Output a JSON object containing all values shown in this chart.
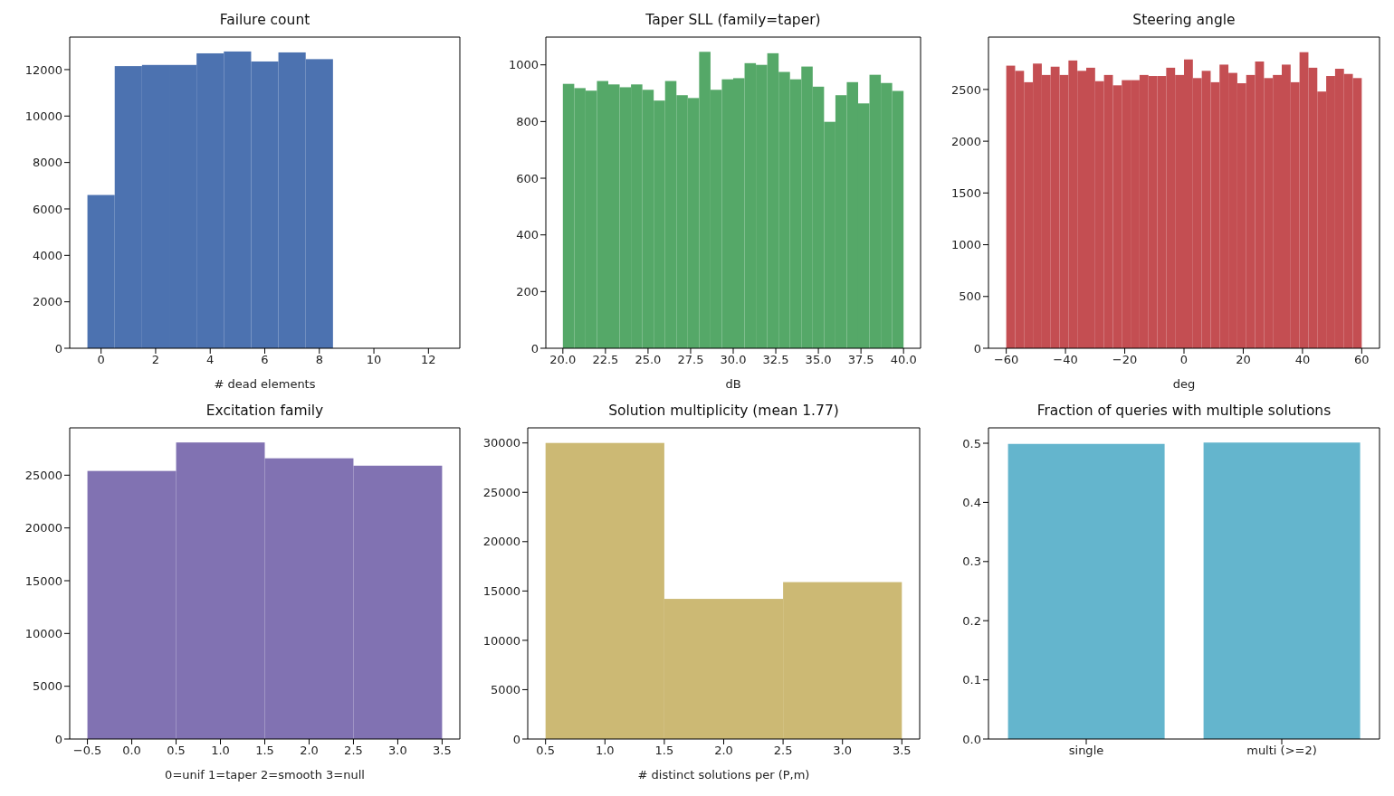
{
  "chart_data": [
    {
      "type": "histogram",
      "title": "Failure count",
      "xlabel": "# dead elements",
      "color": "#4c72b0",
      "bins": [
        -0.5,
        0.5,
        1.5,
        2.5,
        3.5,
        4.5,
        5.5,
        6.5,
        7.5,
        8.5,
        9.5,
        10.5,
        11.5,
        12.5
      ],
      "values": [
        6600,
        12150,
        12200,
        12200,
        12700,
        12780,
        12350,
        12740,
        12450,
        0,
        0,
        0,
        0
      ],
      "xlim": [
        -1.15,
        13.15
      ],
      "xticks": [
        0,
        2,
        4,
        6,
        8,
        10,
        12
      ],
      "ylim": [
        0,
        13400
      ],
      "yticks": [
        0,
        2000,
        4000,
        6000,
        8000,
        10000,
        12000
      ]
    },
    {
      "type": "histogram",
      "title": "Taper SLL (family=taper)",
      "xlabel": "dB",
      "color": "#55a868",
      "bins": [
        20,
        20.667,
        21.333,
        22,
        22.667,
        23.333,
        24,
        24.667,
        25.333,
        26,
        26.667,
        27.333,
        28,
        28.667,
        29.333,
        30,
        30.667,
        31.333,
        32,
        32.667,
        33.333,
        34,
        34.667,
        35.333,
        36,
        36.667,
        37.333,
        38,
        38.667,
        39.333,
        40
      ],
      "values": [
        933,
        918,
        909,
        943,
        931,
        921,
        931,
        912,
        874,
        943,
        893,
        883,
        1046,
        912,
        949,
        953,
        1006,
        1000,
        1041,
        975,
        949,
        994,
        923,
        799,
        893,
        939,
        864,
        965,
        936,
        908
      ],
      "xlim": [
        19,
        41
      ],
      "xticks": [
        {
          "value": 20,
          "label": "20.0"
        },
        22.5,
        {
          "value": 25,
          "label": "25.0"
        },
        27.5,
        {
          "value": 30,
          "label": "30.0"
        },
        32.5,
        {
          "value": 35,
          "label": "35.0"
        },
        37.5,
        {
          "value": 40,
          "label": "40.0"
        }
      ],
      "ylim": [
        0,
        1098
      ],
      "yticks": [
        0,
        200,
        400,
        600,
        800,
        1000
      ]
    },
    {
      "type": "histogram",
      "title": "Steering angle",
      "xlabel": "deg",
      "color": "#c44e52",
      "bins": [
        -60,
        -57,
        -54,
        -51,
        -48,
        -45,
        -42,
        -39,
        -36,
        -33,
        -30,
        -27,
        -24,
        -21,
        -18,
        -15,
        -12,
        -9,
        -6,
        -3,
        0,
        3,
        6,
        9,
        12,
        15,
        18,
        21,
        24,
        27,
        30,
        33,
        36,
        39,
        42,
        45,
        48,
        51,
        54,
        57,
        60
      ],
      "values": [
        2730,
        2680,
        2570,
        2750,
        2640,
        2720,
        2640,
        2780,
        2680,
        2710,
        2580,
        2640,
        2540,
        2590,
        2590,
        2640,
        2630,
        2630,
        2710,
        2640,
        2790,
        2610,
        2680,
        2570,
        2740,
        2660,
        2560,
        2640,
        2770,
        2610,
        2640,
        2740,
        2570,
        2860,
        2710,
        2480,
        2630,
        2700,
        2650,
        2610
      ],
      "xlim": [
        -66,
        66
      ],
      "xticks": [
        {
          "value": -60,
          "label": "−60"
        },
        {
          "value": -40,
          "label": "−40"
        },
        {
          "value": -20,
          "label": "−20"
        },
        0,
        20,
        40,
        60
      ],
      "ylim": [
        0,
        3006
      ],
      "yticks": [
        0,
        500,
        1000,
        1500,
        2000,
        2500
      ]
    },
    {
      "type": "histogram",
      "title": "Excitation family",
      "xlabel": "0=unif 1=taper 2=smooth 3=null",
      "color": "#8172b2",
      "bins": [
        -0.5,
        0.5,
        1.5,
        2.5,
        3.5
      ],
      "values": [
        25400,
        28100,
        26600,
        25900
      ],
      "xlim": [
        -0.7,
        3.7
      ],
      "xticks": [
        {
          "value": -0.5,
          "label": "−0.5"
        },
        {
          "value": 0,
          "label": "0.0"
        },
        0.5,
        {
          "value": 1,
          "label": "1.0"
        },
        1.5,
        {
          "value": 2,
          "label": "2.0"
        },
        2.5,
        {
          "value": 3,
          "label": "3.0"
        },
        3.5
      ],
      "ylim": [
        0,
        29484
      ],
      "yticks": [
        0,
        5000,
        10000,
        15000,
        20000,
        25000
      ]
    },
    {
      "type": "histogram",
      "title": "Solution multiplicity (mean 1.77)",
      "xlabel": "# distinct solutions per (P,m)",
      "color": "#ccb974",
      "bins": [
        0.5,
        1.5,
        2.5,
        3.5
      ],
      "values": [
        30000,
        14200,
        15900
      ],
      "xlim": [
        0.35,
        3.65
      ],
      "xticks": [
        0.5,
        {
          "value": 1,
          "label": "1.0"
        },
        1.5,
        {
          "value": 2,
          "label": "2.0"
        },
        2.5,
        {
          "value": 3,
          "label": "3.0"
        },
        3.5
      ],
      "ylim": [
        0,
        31530
      ],
      "yticks": [
        0,
        5000,
        10000,
        15000,
        20000,
        25000,
        30000
      ]
    },
    {
      "type": "bar",
      "title": "Fraction of queries with multiple solutions",
      "color": "#64b5cd",
      "categories": [
        "single",
        "multi (>=2)"
      ],
      "values": [
        0.499,
        0.501
      ],
      "ylim": [
        0,
        0.526
      ],
      "yticks": [
        {
          "value": 0,
          "label": "0.0"
        },
        0.1,
        0.2,
        0.3,
        0.4,
        0.5
      ]
    }
  ]
}
